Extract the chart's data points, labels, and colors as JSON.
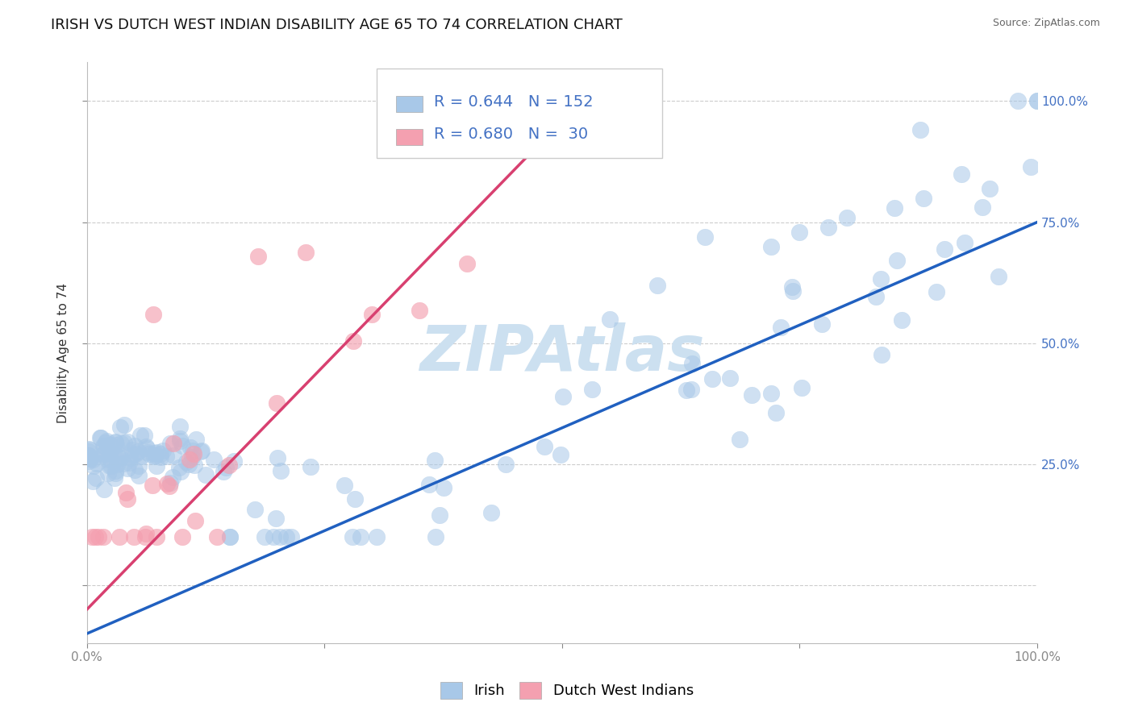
{
  "title": "IRISH VS DUTCH WEST INDIAN DISABILITY AGE 65 TO 74 CORRELATION CHART",
  "source": "Source: ZipAtlas.com",
  "ylabel": "Disability Age 65 to 74",
  "xlim": [
    0.0,
    1.0
  ],
  "ylim": [
    -0.12,
    1.08
  ],
  "irish_R": 0.644,
  "irish_N": 152,
  "dutch_R": 0.68,
  "dutch_N": 30,
  "irish_color": "#a8c8e8",
  "dutch_color": "#f4a0b0",
  "irish_line_color": "#2060c0",
  "dutch_line_color": "#d84070",
  "grid_color": "#cccccc",
  "background_color": "#ffffff",
  "title_fontsize": 13,
  "axis_fontsize": 11,
  "tick_fontsize": 11,
  "legend_fontsize": 14,
  "right_tick_color": "#4472c4",
  "watermark_color": "#cce0f0",
  "irish_line_x0": 0.0,
  "irish_line_y0": -0.1,
  "irish_line_x1": 1.0,
  "irish_line_y1": 0.75,
  "dutch_line_x0": 0.0,
  "dutch_line_y0": -0.05,
  "dutch_line_x1": 0.52,
  "dutch_line_y1": 1.0
}
